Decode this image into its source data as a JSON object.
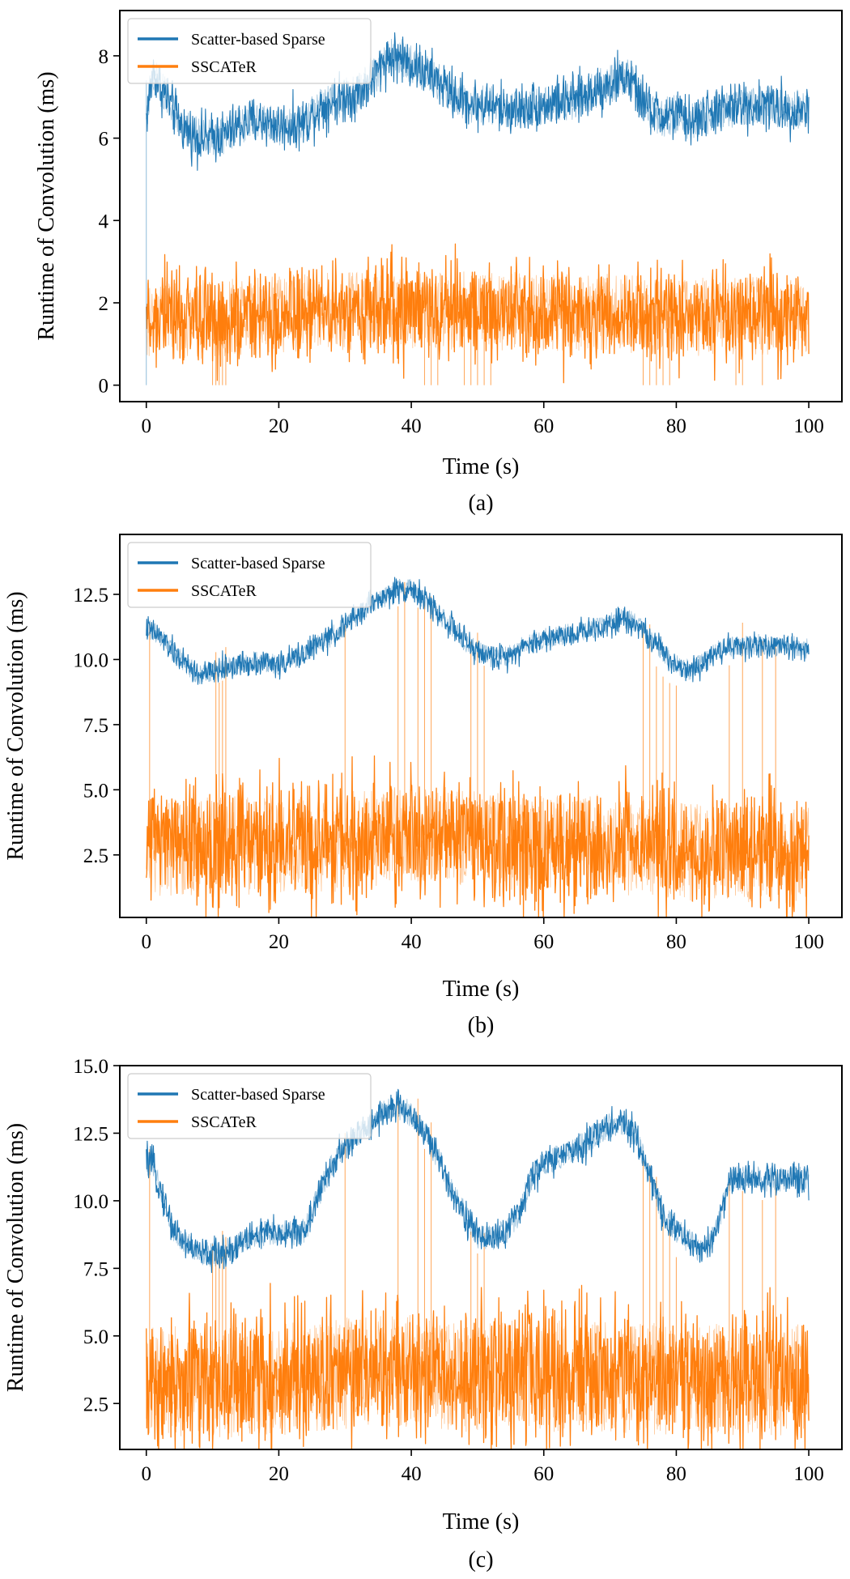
{
  "colors": {
    "series_0": "#1f77b4",
    "series_1": "#ff7f0e",
    "axis": "#000000"
  },
  "chart_data": [
    {
      "type": "line",
      "caption": "(a)",
      "xlabel": "Time (s)",
      "ylabel": "Runtime of Convolution (ms)",
      "xlim": [
        -4,
        105
      ],
      "ylim": [
        -0.4,
        9.1
      ],
      "xticks": [
        0,
        20,
        40,
        60,
        80,
        100
      ],
      "xtick_labels": [
        "0",
        "20",
        "40",
        "60",
        "80",
        "100"
      ],
      "yticks": [
        0,
        2,
        4,
        6,
        8
      ],
      "ytick_labels": [
        "0",
        "2",
        "4",
        "6",
        "8"
      ],
      "legend": {
        "placement": "top-left",
        "entries": [
          "Scatter-based Sparse",
          "SSCATeR"
        ]
      },
      "series": [
        {
          "name": "Scatter-based Sparse",
          "color": "#1f77b4",
          "x": [
            0,
            1,
            2,
            3,
            4,
            5,
            6,
            8,
            10,
            12,
            14,
            16,
            18,
            20,
            22,
            24,
            26,
            28,
            30,
            32,
            34,
            36,
            38,
            40,
            42,
            44,
            46,
            48,
            50,
            52,
            54,
            56,
            58,
            60,
            62,
            64,
            66,
            68,
            70,
            72,
            73,
            74,
            76,
            78,
            80,
            82,
            84,
            86,
            88,
            90,
            92,
            94,
            96,
            98,
            100
          ],
          "y": [
            6.5,
            7.6,
            7.3,
            7.0,
            6.7,
            6.4,
            6.2,
            6.0,
            6.0,
            6.1,
            6.3,
            6.4,
            6.4,
            6.3,
            6.3,
            6.4,
            6.7,
            6.9,
            7.0,
            7.1,
            7.4,
            7.9,
            8.0,
            7.8,
            7.6,
            7.4,
            7.1,
            6.9,
            6.8,
            6.8,
            6.7,
            6.7,
            6.8,
            6.8,
            6.9,
            6.9,
            7.0,
            7.2,
            7.3,
            7.5,
            7.4,
            7.1,
            6.7,
            6.5,
            6.6,
            6.4,
            6.5,
            6.7,
            6.7,
            6.8,
            6.8,
            6.8,
            6.7,
            6.7,
            6.7
          ],
          "noise": 0.3
        },
        {
          "name": "SSCATeR",
          "color": "#ff7f0e",
          "x": [
            0,
            10,
            20,
            30,
            40,
            50,
            60,
            70,
            80,
            90,
            100
          ],
          "y": [
            1.6,
            1.6,
            1.7,
            1.8,
            1.85,
            1.8,
            1.8,
            1.75,
            1.65,
            1.7,
            1.7
          ],
          "noise": 0.6,
          "drops": [
            10,
            10.5,
            11,
            11.5,
            12,
            42,
            43,
            44,
            48,
            49,
            50,
            51,
            52,
            75,
            76,
            77,
            78,
            79,
            89,
            90,
            93
          ]
        }
      ]
    },
    {
      "type": "line",
      "caption": "(b)",
      "xlabel": "Time (s)",
      "ylabel": "Runtime of Convolution (ms)",
      "xlim": [
        -4,
        105
      ],
      "ylim": [
        0.1,
        14.8
      ],
      "xticks": [
        0,
        20,
        40,
        60,
        80,
        100
      ],
      "xtick_labels": [
        "0",
        "20",
        "40",
        "60",
        "80",
        "100"
      ],
      "yticks": [
        2.5,
        5.0,
        7.5,
        10.0,
        12.5
      ],
      "ytick_labels": [
        "2.5",
        "5.0",
        "7.5",
        "10.0",
        "12.5"
      ],
      "legend": {
        "placement": "top-left",
        "entries": [
          "Scatter-based Sparse",
          "SSCATeR"
        ]
      },
      "series": [
        {
          "name": "Scatter-based Sparse",
          "color": "#1f77b4",
          "x": [
            0,
            2,
            4,
            6,
            8,
            10,
            12,
            14,
            16,
            18,
            20,
            22,
            24,
            26,
            28,
            30,
            32,
            34,
            36,
            38,
            40,
            42,
            44,
            46,
            48,
            50,
            52,
            54,
            56,
            58,
            60,
            62,
            64,
            66,
            68,
            70,
            72,
            74,
            76,
            78,
            80,
            82,
            84,
            86,
            88,
            90,
            92,
            94,
            96,
            98,
            100
          ],
          "y": [
            11.2,
            10.9,
            10.3,
            9.8,
            9.4,
            9.5,
            9.7,
            9.8,
            9.9,
            9.9,
            9.8,
            10.0,
            10.3,
            10.6,
            10.9,
            11.3,
            11.7,
            12.2,
            12.4,
            12.7,
            12.7,
            12.3,
            11.8,
            11.3,
            10.7,
            10.3,
            10.1,
            10.1,
            10.4,
            10.6,
            10.8,
            10.9,
            11.0,
            11.1,
            11.2,
            11.4,
            11.6,
            11.4,
            10.8,
            10.3,
            9.8,
            9.6,
            9.9,
            10.3,
            10.5,
            10.5,
            10.6,
            10.5,
            10.5,
            10.5,
            10.4
          ],
          "noise": 0.25
        },
        {
          "name": "SSCATeR",
          "color": "#ff7f0e",
          "x": [
            0,
            10,
            20,
            30,
            40,
            50,
            60,
            70,
            80,
            90,
            100
          ],
          "y": [
            2.8,
            2.8,
            2.9,
            3.0,
            3.3,
            3.1,
            2.9,
            2.9,
            2.6,
            2.6,
            2.5
          ],
          "noise": 1.2,
          "spikes": [
            0.5,
            10.5,
            11,
            11.5,
            12,
            30,
            38,
            39,
            41,
            42,
            43,
            49,
            50,
            51,
            75,
            76,
            77,
            78,
            79,
            80,
            88,
            90,
            93,
            95
          ]
        }
      ]
    },
    {
      "type": "line",
      "caption": "(c)",
      "xlabel": "Time (s)",
      "ylabel": "Runtime of Convolution (ms)",
      "xlim": [
        -4,
        105
      ],
      "ylim": [
        0.8,
        15.0
      ],
      "xticks": [
        0,
        20,
        40,
        60,
        80,
        100
      ],
      "xtick_labels": [
        "0",
        "20",
        "40",
        "60",
        "80",
        "100"
      ],
      "yticks": [
        2.5,
        5.0,
        7.5,
        10.0,
        12.5,
        15.0
      ],
      "ytick_labels": [
        "2.5",
        "5.0",
        "7.5",
        "10.0",
        "12.5",
        "15.0"
      ],
      "legend": {
        "placement": "top-left",
        "entries": [
          "Scatter-based Sparse",
          "SSCATeR"
        ]
      },
      "series": [
        {
          "name": "Scatter-based Sparse",
          "color": "#1f77b4",
          "x": [
            0,
            1,
            2,
            4,
            6,
            8,
            10,
            12,
            14,
            16,
            18,
            20,
            22,
            24,
            26,
            28,
            30,
            32,
            34,
            36,
            38,
            40,
            42,
            44,
            46,
            48,
            50,
            52,
            54,
            56,
            58,
            60,
            62,
            64,
            66,
            68,
            70,
            72,
            74,
            76,
            78,
            80,
            82,
            84,
            86,
            87,
            88,
            90,
            92,
            94,
            96,
            98,
            100
          ],
          "y": [
            11.5,
            11.3,
            10.5,
            9.0,
            8.4,
            8.1,
            8.0,
            8.1,
            8.4,
            8.7,
            8.8,
            8.8,
            8.8,
            8.9,
            10.2,
            11.3,
            12.0,
            12.4,
            12.9,
            13.3,
            13.5,
            13.2,
            12.5,
            11.6,
            10.5,
            9.5,
            8.7,
            8.6,
            8.8,
            9.4,
            10.8,
            11.4,
            11.6,
            11.8,
            12.1,
            12.5,
            12.8,
            12.9,
            12.3,
            11.0,
            9.5,
            8.9,
            8.5,
            8.1,
            8.9,
            9.8,
            10.8,
            10.8,
            10.8,
            10.8,
            10.8,
            10.8,
            10.8
          ],
          "noise": 0.3
        },
        {
          "name": "SSCATeR",
          "color": "#ff7f0e",
          "x": [
            0,
            10,
            20,
            30,
            40,
            50,
            60,
            70,
            80,
            90,
            100
          ],
          "y": [
            3.3,
            3.3,
            3.4,
            3.6,
            3.7,
            3.5,
            3.5,
            3.5,
            3.4,
            3.4,
            3.4
          ],
          "noise": 1.3,
          "spikes": [
            0.5,
            10,
            10.5,
            11,
            11.5,
            12,
            30,
            38,
            41,
            42,
            43,
            49,
            50,
            51,
            75,
            76,
            77,
            78,
            79,
            80,
            88,
            90,
            93,
            95
          ]
        }
      ]
    }
  ]
}
